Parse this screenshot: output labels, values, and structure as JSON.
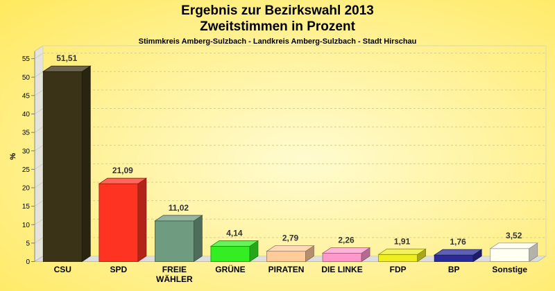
{
  "chart_data": {
    "type": "bar",
    "title_line1": "Ergebnis zur Bezirkswahl 2013",
    "title_line2": "Zweitstimmen in Prozent",
    "subtitle": "Stimmkreis Amberg-Sulzbach - Landkreis Amberg-Sulzbach - Stadt Hirschau",
    "ylabel": "%",
    "xlabel": "",
    "ylim": [
      0,
      57
    ],
    "yticks": [
      0,
      5,
      10,
      15,
      20,
      25,
      30,
      35,
      40,
      45,
      50,
      55
    ],
    "grid": true,
    "categories": [
      "CSU",
      "SPD",
      "FREIE WÄHLER",
      "GRÜNE",
      "PIRATEN",
      "DIE LINKE",
      "FDP",
      "BP",
      "Sonstige"
    ],
    "values": [
      51.51,
      21.09,
      11.02,
      4.14,
      2.79,
      2.26,
      1.91,
      1.76,
      3.52
    ],
    "value_labels": [
      "51,51",
      "21,09",
      "11,02",
      "4,14",
      "2,79",
      "2,26",
      "1,91",
      "1,76",
      "3,52"
    ],
    "colors": [
      "#3b3317",
      "#ff3322",
      "#6f9c80",
      "#33ee22",
      "#ffcc99",
      "#ff99cc",
      "#eeee22",
      "#2a2a99",
      "#fffff2"
    ]
  }
}
